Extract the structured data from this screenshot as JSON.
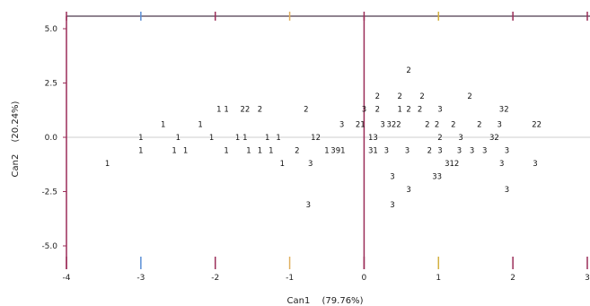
{
  "chart_data": {
    "type": "scatter",
    "title": "",
    "xlabel": "Can1",
    "xlabel_pct": "(79.76%)",
    "ylabel": "Can2",
    "ylabel_pct": "(20.24%)",
    "xlim": [
      -4,
      3
    ],
    "ylim": [
      -5.5,
      5.5
    ],
    "x_ticks": [
      -4,
      -3,
      -2,
      -1,
      0,
      1,
      2,
      3
    ],
    "x_tick_labels": [
      "-4",
      "-3",
      "-2",
      "-1",
      "0",
      "1",
      "2",
      "3"
    ],
    "y_ticks": [
      5.0,
      2.5,
      0.0,
      -2.5,
      -5.0
    ],
    "y_tick_labels": [
      "5.0",
      "2.5",
      "0.0",
      "-2.5",
      "-5.0"
    ],
    "colors": {
      "frame": "#6b5b6b",
      "axis_vline": "#9b2d58",
      "zero_hline": "#cccccc",
      "tick_minus3": "#5b8fd6",
      "tick_minus1": "#e0b060",
      "tick_1": "#d2b040"
    },
    "points": [
      {
        "x": -3.45,
        "y": -1.2,
        "label": "1"
      },
      {
        "x": -3.0,
        "y": 0.0,
        "label": "1"
      },
      {
        "x": -3.0,
        "y": -0.6,
        "label": "1"
      },
      {
        "x": -2.7,
        "y": 0.6,
        "label": "1"
      },
      {
        "x": -2.5,
        "y": 0.0,
        "label": "1"
      },
      {
        "x": -2.55,
        "y": -0.6,
        "label": "1"
      },
      {
        "x": -2.4,
        "y": -0.6,
        "label": "1"
      },
      {
        "x": -2.2,
        "y": 0.6,
        "label": "1"
      },
      {
        "x": -2.05,
        "y": 0.0,
        "label": "1"
      },
      {
        "x": -1.95,
        "y": 1.3,
        "label": "1"
      },
      {
        "x": -1.85,
        "y": 1.3,
        "label": "1"
      },
      {
        "x": -1.85,
        "y": -0.6,
        "label": "1"
      },
      {
        "x": -1.7,
        "y": 0.0,
        "label": "1"
      },
      {
        "x": -1.6,
        "y": 1.3,
        "label": "22"
      },
      {
        "x": -1.6,
        "y": 0.0,
        "label": "1"
      },
      {
        "x": -1.55,
        "y": -0.6,
        "label": "1"
      },
      {
        "x": -1.4,
        "y": -0.6,
        "label": "1"
      },
      {
        "x": -1.4,
        "y": 1.3,
        "label": "2"
      },
      {
        "x": -1.3,
        "y": 0.0,
        "label": "1"
      },
      {
        "x": -1.25,
        "y": -0.6,
        "label": "1"
      },
      {
        "x": -1.15,
        "y": 0.0,
        "label": "1"
      },
      {
        "x": -1.1,
        "y": -1.2,
        "label": "1"
      },
      {
        "x": -0.9,
        "y": -0.6,
        "label": "2"
      },
      {
        "x": -0.78,
        "y": 1.3,
        "label": "2"
      },
      {
        "x": -0.72,
        "y": -1.2,
        "label": "3"
      },
      {
        "x": -0.65,
        "y": 0.0,
        "label": "12"
      },
      {
        "x": -0.75,
        "y": -3.1,
        "label": "3"
      },
      {
        "x": -0.5,
        "y": -0.6,
        "label": "1"
      },
      {
        "x": -0.35,
        "y": -0.6,
        "label": "391"
      },
      {
        "x": -0.3,
        "y": 0.6,
        "label": "3"
      },
      {
        "x": -0.05,
        "y": 0.6,
        "label": "21"
      },
      {
        "x": 0.0,
        "y": 1.3,
        "label": "3"
      },
      {
        "x": 0.12,
        "y": 0.0,
        "label": "13"
      },
      {
        "x": 0.12,
        "y": -0.6,
        "label": "31"
      },
      {
        "x": 0.18,
        "y": 1.3,
        "label": "2"
      },
      {
        "x": 0.18,
        "y": 1.9,
        "label": "2"
      },
      {
        "x": 0.25,
        "y": 0.6,
        "label": "3"
      },
      {
        "x": 0.3,
        "y": -0.6,
        "label": "3"
      },
      {
        "x": 0.4,
        "y": 0.6,
        "label": "322"
      },
      {
        "x": 0.38,
        "y": -1.8,
        "label": "3"
      },
      {
        "x": 0.38,
        "y": -3.1,
        "label": "3"
      },
      {
        "x": 0.48,
        "y": 1.3,
        "label": "1"
      },
      {
        "x": 0.48,
        "y": 1.9,
        "label": "2"
      },
      {
        "x": 0.58,
        "y": -0.6,
        "label": "3"
      },
      {
        "x": 0.6,
        "y": 1.3,
        "label": "2"
      },
      {
        "x": 0.6,
        "y": 3.1,
        "label": "2"
      },
      {
        "x": 0.6,
        "y": -2.4,
        "label": "3"
      },
      {
        "x": 0.75,
        "y": 1.3,
        "label": "2"
      },
      {
        "x": 0.78,
        "y": 1.9,
        "label": "2"
      },
      {
        "x": 0.85,
        "y": 0.6,
        "label": "2"
      },
      {
        "x": 0.88,
        "y": -0.6,
        "label": "2"
      },
      {
        "x": 0.98,
        "y": 0.6,
        "label": "2"
      },
      {
        "x": 0.98,
        "y": -1.8,
        "label": "33"
      },
      {
        "x": 1.02,
        "y": 1.3,
        "label": "3"
      },
      {
        "x": 1.02,
        "y": 0.0,
        "label": "2"
      },
      {
        "x": 1.02,
        "y": -0.6,
        "label": "3"
      },
      {
        "x": 1.2,
        "y": 0.6,
        "label": "2"
      },
      {
        "x": 1.18,
        "y": -1.2,
        "label": "312"
      },
      {
        "x": 1.28,
        "y": -0.6,
        "label": "3"
      },
      {
        "x": 1.3,
        "y": 0.0,
        "label": "3"
      },
      {
        "x": 1.42,
        "y": 1.9,
        "label": "2"
      },
      {
        "x": 1.45,
        "y": -0.6,
        "label": "3"
      },
      {
        "x": 1.55,
        "y": 0.6,
        "label": "2"
      },
      {
        "x": 1.62,
        "y": -0.6,
        "label": "3"
      },
      {
        "x": 1.75,
        "y": 0.0,
        "label": "32"
      },
      {
        "x": 1.82,
        "y": 0.6,
        "label": "3"
      },
      {
        "x": 1.85,
        "y": -1.2,
        "label": "3"
      },
      {
        "x": 1.88,
        "y": 1.3,
        "label": "32"
      },
      {
        "x": 1.92,
        "y": -0.6,
        "label": "3"
      },
      {
        "x": 1.92,
        "y": -2.4,
        "label": "3"
      },
      {
        "x": 2.32,
        "y": 0.6,
        "label": "22"
      },
      {
        "x": 2.3,
        "y": -1.2,
        "label": "3"
      }
    ]
  }
}
